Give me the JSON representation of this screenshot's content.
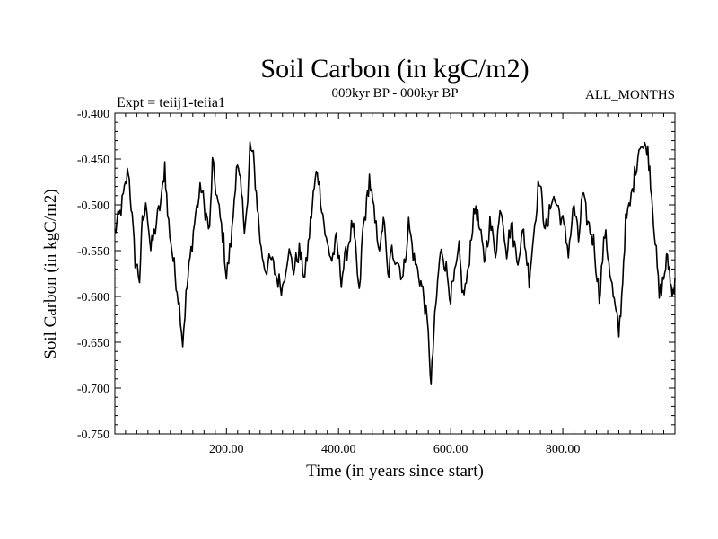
{
  "chart_data": {
    "type": "line",
    "title": "Soil Carbon (in kgC/m2)",
    "subtitle": "009kyr BP - 000kyr BP",
    "experiment_label": "Expt = teiij1-teiia1",
    "season_label": "ALL_MONTHS",
    "xlabel": "Time (in years since start)",
    "ylabel": "Soil Carbon (in kgC/m2)",
    "xlim": [
      1,
      1000
    ],
    "ylim": [
      -0.75,
      -0.4
    ],
    "x_ticks": [
      200,
      400,
      600,
      800
    ],
    "x_tick_labels": [
      "200.00",
      "400.00",
      "600.00",
      "800.00"
    ],
    "y_ticks": [
      -0.4,
      -0.45,
      -0.5,
      -0.55,
      -0.6,
      -0.65,
      -0.7,
      -0.75
    ],
    "y_tick_labels": [
      "-0.400",
      "-0.450",
      "-0.500",
      "-0.550",
      "-0.600",
      "-0.650",
      "-0.700",
      "-0.750"
    ],
    "grid": false,
    "line_color": "#000000",
    "series": [
      {
        "x": [
          1,
          10,
          20,
          25,
          30,
          37,
          45,
          50,
          58,
          65,
          75,
          85,
          90,
          95,
          105,
          112,
          118,
          122,
          128,
          135,
          145,
          155,
          160,
          170,
          175,
          185,
          195,
          200,
          210,
          218,
          225,
          232,
          238,
          242,
          248,
          255,
          262,
          270,
          280,
          290,
          300,
          310,
          320,
          330,
          340,
          350,
          355,
          362,
          370,
          378,
          388,
          396,
          405,
          415,
          425,
          430,
          437,
          443,
          450,
          455,
          465,
          475,
          480,
          488,
          495,
          505,
          515,
          525,
          535,
          545,
          552,
          558,
          562,
          565,
          570,
          575,
          580,
          585,
          592,
          600,
          607,
          615,
          622,
          630,
          637,
          645,
          652,
          660,
          670,
          680,
          690,
          700,
          708,
          718,
          730,
          740,
          750,
          758,
          765,
          772,
          780,
          790,
          800,
          810,
          820,
          828,
          835,
          845,
          855,
          865,
          875,
          882,
          890,
          895,
          900,
          905,
          912,
          920,
          930,
          938,
          944,
          950,
          955,
          960,
          965,
          972,
          980,
          985,
          990,
          995,
          1000
        ],
        "y": [
          -0.53,
          -0.51,
          -0.48,
          -0.46,
          -0.5,
          -0.56,
          -0.58,
          -0.52,
          -0.5,
          -0.55,
          -0.52,
          -0.49,
          -0.455,
          -0.51,
          -0.56,
          -0.59,
          -0.62,
          -0.65,
          -0.6,
          -0.56,
          -0.51,
          -0.48,
          -0.5,
          -0.53,
          -0.455,
          -0.5,
          -0.54,
          -0.58,
          -0.53,
          -0.455,
          -0.48,
          -0.52,
          -0.5,
          -0.435,
          -0.45,
          -0.5,
          -0.55,
          -0.57,
          -0.56,
          -0.58,
          -0.59,
          -0.55,
          -0.57,
          -0.55,
          -0.58,
          -0.52,
          -0.49,
          -0.46,
          -0.5,
          -0.54,
          -0.56,
          -0.54,
          -0.58,
          -0.55,
          -0.52,
          -0.55,
          -0.6,
          -0.53,
          -0.5,
          -0.47,
          -0.52,
          -0.55,
          -0.51,
          -0.58,
          -0.55,
          -0.56,
          -0.58,
          -0.52,
          -0.56,
          -0.58,
          -0.6,
          -0.63,
          -0.66,
          -0.7,
          -0.64,
          -0.6,
          -0.56,
          -0.55,
          -0.57,
          -0.6,
          -0.58,
          -0.55,
          -0.6,
          -0.58,
          -0.53,
          -0.5,
          -0.53,
          -0.56,
          -0.52,
          -0.55,
          -0.5,
          -0.55,
          -0.52,
          -0.56,
          -0.53,
          -0.58,
          -0.52,
          -0.47,
          -0.51,
          -0.53,
          -0.49,
          -0.5,
          -0.52,
          -0.55,
          -0.5,
          -0.54,
          -0.49,
          -0.52,
          -0.54,
          -0.6,
          -0.53,
          -0.56,
          -0.6,
          -0.62,
          -0.64,
          -0.6,
          -0.52,
          -0.5,
          -0.46,
          -0.43,
          -0.44,
          -0.435,
          -0.46,
          -0.5,
          -0.54,
          -0.6,
          -0.58,
          -0.56,
          -0.57,
          -0.6,
          -0.58
        ]
      }
    ]
  }
}
